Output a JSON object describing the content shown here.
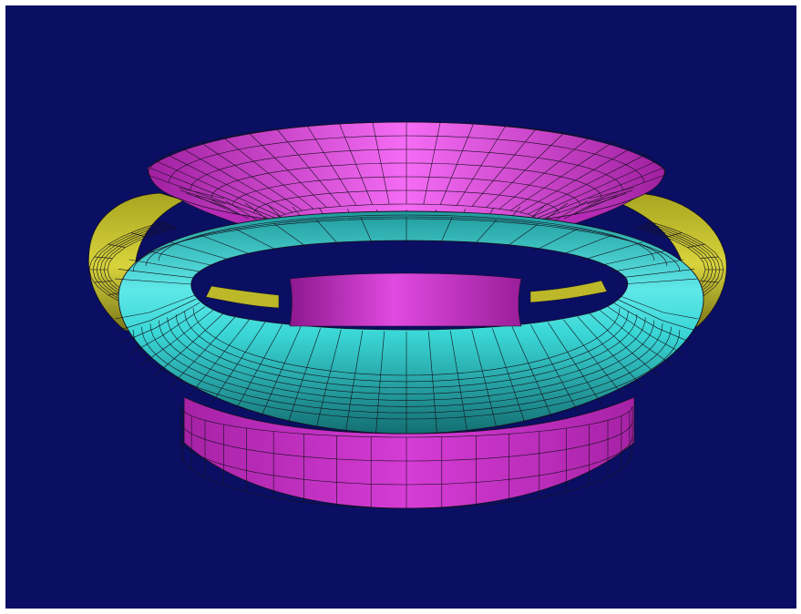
{
  "scene": {
    "background": "#0a0f64",
    "frame": "#ffffff",
    "mesh_line": "#14101c",
    "objects": [
      {
        "name": "funnel-surface",
        "base_color": "#d23ad2",
        "highlight_color": "#f46cf4",
        "shadow_color": "#8e188e"
      },
      {
        "name": "cyan-torus",
        "base_color": "#2cc8c8",
        "highlight_color": "#7ff6f6",
        "shadow_color": "#136f72"
      },
      {
        "name": "yellow-ring",
        "base_color": "#c8c42e",
        "highlight_color": "#ecea6a",
        "shadow_color": "#6e6a14"
      }
    ]
  }
}
